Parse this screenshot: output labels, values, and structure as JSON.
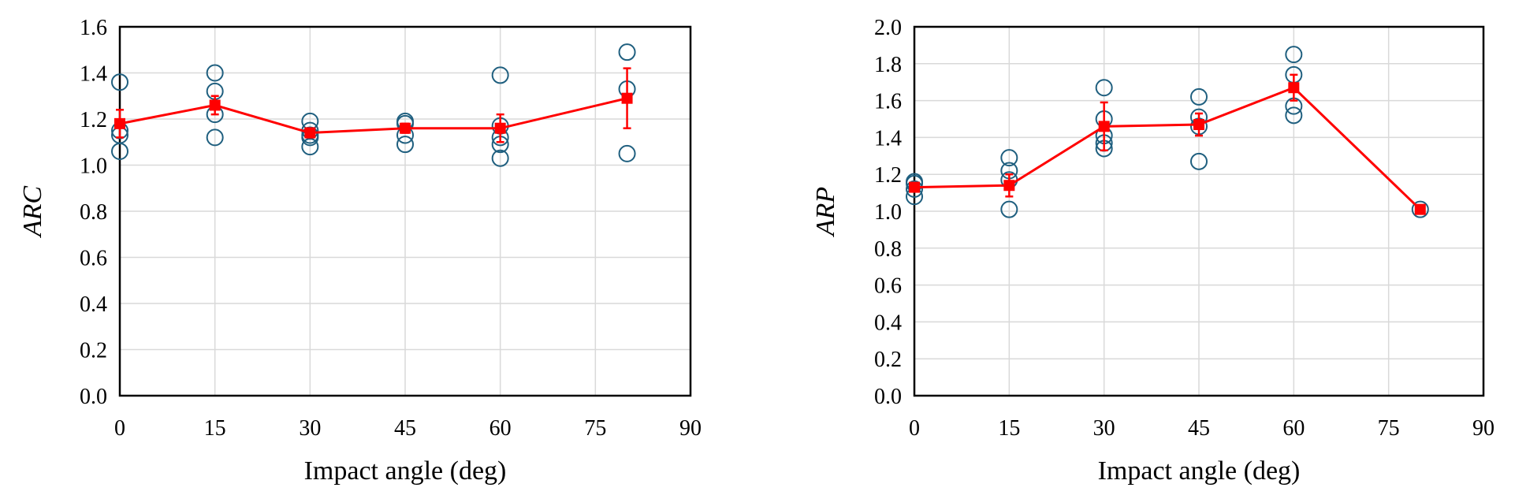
{
  "chart_data": [
    {
      "type": "scatter",
      "title": "",
      "xlabel": "Impact angle (deg)",
      "ylabel": "ARC",
      "xlim": [
        0,
        90
      ],
      "ylim": [
        0,
        1.6
      ],
      "xticks": [
        "0",
        "15",
        "30",
        "45",
        "60",
        "75",
        "90"
      ],
      "yticks": [
        "0.0",
        "0.2",
        "0.4",
        "0.6",
        "0.8",
        "1.0",
        "1.2",
        "1.4",
        "1.6"
      ],
      "xtick_values": [
        0,
        15,
        30,
        45,
        60,
        75,
        90
      ],
      "ytick_values": [
        0,
        0.2,
        0.4,
        0.6,
        0.8,
        1.0,
        1.2,
        1.4,
        1.6
      ],
      "grid": true,
      "legend": "none",
      "colors": {
        "points": "#1f5f7f",
        "mean": "#ff0000"
      },
      "individual": [
        {
          "x": 0,
          "y": [
            1.36,
            1.15,
            1.13,
            1.06
          ]
        },
        {
          "x": 15,
          "y": [
            1.4,
            1.32,
            1.22,
            1.12
          ]
        },
        {
          "x": 30,
          "y": [
            1.19,
            1.15,
            1.13,
            1.12,
            1.08
          ]
        },
        {
          "x": 45,
          "y": [
            1.19,
            1.18,
            1.13,
            1.09
          ]
        },
        {
          "x": 60,
          "y": [
            1.39,
            1.17,
            1.12,
            1.09,
            1.03
          ]
        },
        {
          "x": 80,
          "y": [
            1.49,
            1.33,
            1.05
          ]
        }
      ],
      "mean": [
        {
          "x": 0,
          "y": 1.18,
          "err": 0.06
        },
        {
          "x": 15,
          "y": 1.26,
          "err": 0.04
        },
        {
          "x": 30,
          "y": 1.14,
          "err": 0.02
        },
        {
          "x": 45,
          "y": 1.16,
          "err": 0.02
        },
        {
          "x": 60,
          "y": 1.16,
          "err": 0.06
        },
        {
          "x": 80,
          "y": 1.29,
          "err": 0.13
        }
      ]
    },
    {
      "type": "scatter",
      "title": "",
      "xlabel": "Impact angle (deg)",
      "ylabel": "ARP",
      "xlim": [
        0,
        90
      ],
      "ylim": [
        0,
        2.0
      ],
      "xticks": [
        "0",
        "15",
        "30",
        "45",
        "60",
        "75",
        "90"
      ],
      "yticks": [
        "0.0",
        "0.2",
        "0.4",
        "0.6",
        "0.8",
        "1.0",
        "1.2",
        "1.4",
        "1.6",
        "1.8",
        "2.0"
      ],
      "xtick_values": [
        0,
        15,
        30,
        45,
        60,
        75,
        90
      ],
      "ytick_values": [
        0,
        0.2,
        0.4,
        0.6,
        0.8,
        1.0,
        1.2,
        1.4,
        1.6,
        1.8,
        2.0
      ],
      "grid": true,
      "legend": "none",
      "colors": {
        "points": "#1f5f7f",
        "mean": "#ff0000"
      },
      "individual": [
        {
          "x": 0,
          "y": [
            1.16,
            1.15,
            1.12,
            1.08
          ]
        },
        {
          "x": 15,
          "y": [
            1.29,
            1.22,
            1.17,
            1.01
          ]
        },
        {
          "x": 30,
          "y": [
            1.67,
            1.5,
            1.41,
            1.37,
            1.34
          ]
        },
        {
          "x": 45,
          "y": [
            1.62,
            1.51,
            1.46,
            1.27
          ]
        },
        {
          "x": 60,
          "y": [
            1.85,
            1.74,
            1.57,
            1.52
          ]
        },
        {
          "x": 80,
          "y": [
            1.01
          ]
        }
      ],
      "mean": [
        {
          "x": 0,
          "y": 1.13,
          "err": 0.02
        },
        {
          "x": 15,
          "y": 1.14,
          "err": 0.06
        },
        {
          "x": 30,
          "y": 1.46,
          "err": 0.13
        },
        {
          "x": 45,
          "y": 1.47,
          "err": 0.06
        },
        {
          "x": 60,
          "y": 1.67,
          "err": 0.07
        },
        {
          "x": 80,
          "y": 1.01,
          "err": 0.0
        }
      ]
    }
  ]
}
